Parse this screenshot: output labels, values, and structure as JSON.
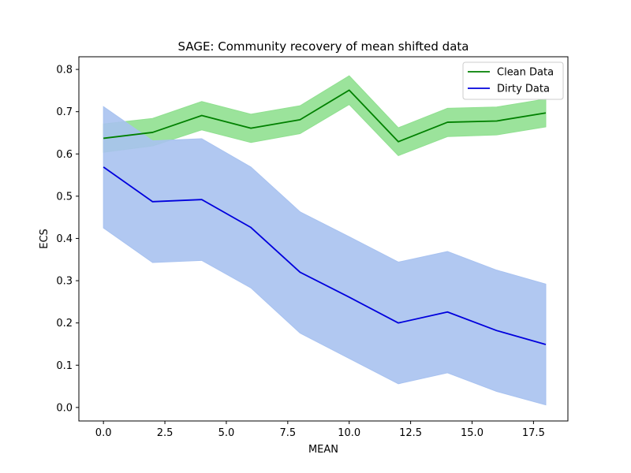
{
  "chart_data": {
    "type": "line",
    "title": "SAGE: Community recovery of mean shifted data",
    "xlabel": "MEAN",
    "ylabel": "ECS",
    "xlim": [
      -1.0,
      18.9
    ],
    "ylim": [
      -0.032,
      0.83
    ],
    "xticks": [
      0.0,
      2.5,
      5.0,
      7.5,
      10.0,
      12.5,
      15.0,
      17.5
    ],
    "xtick_labels": [
      "0.0",
      "2.5",
      "5.0",
      "7.5",
      "10.0",
      "12.5",
      "15.0",
      "17.5"
    ],
    "yticks": [
      0.0,
      0.1,
      0.2,
      0.3,
      0.4,
      0.5,
      0.6,
      0.7,
      0.8
    ],
    "ytick_labels": [
      "0.0",
      "0.1",
      "0.2",
      "0.3",
      "0.4",
      "0.5",
      "0.6",
      "0.7",
      "0.8"
    ],
    "grid": false,
    "legend_position": "top-right",
    "x": [
      0,
      2,
      4,
      6,
      8,
      10,
      12,
      14,
      16,
      18
    ],
    "series": [
      {
        "name": "Clean Data",
        "line_color": "#008000",
        "band_color": "#90e090",
        "values": [
          0.637,
          0.651,
          0.691,
          0.661,
          0.681,
          0.751,
          0.629,
          0.675,
          0.678,
          0.697
        ],
        "lower": [
          0.604,
          0.619,
          0.657,
          0.627,
          0.648,
          0.717,
          0.596,
          0.641,
          0.645,
          0.664
        ],
        "upper": [
          0.671,
          0.684,
          0.724,
          0.694,
          0.714,
          0.785,
          0.662,
          0.708,
          0.711,
          0.73
        ]
      },
      {
        "name": "Dirty Data",
        "line_color": "#0000dd",
        "band_color": "#a8c2f0",
        "values": [
          0.569,
          0.487,
          0.492,
          0.426,
          0.32,
          0.261,
          0.2,
          0.226,
          0.182,
          0.149
        ],
        "lower": [
          0.425,
          0.343,
          0.348,
          0.283,
          0.176,
          0.116,
          0.056,
          0.082,
          0.038,
          0.006
        ],
        "upper": [
          0.712,
          0.631,
          0.636,
          0.569,
          0.463,
          0.404,
          0.344,
          0.369,
          0.325,
          0.292
        ]
      }
    ]
  }
}
